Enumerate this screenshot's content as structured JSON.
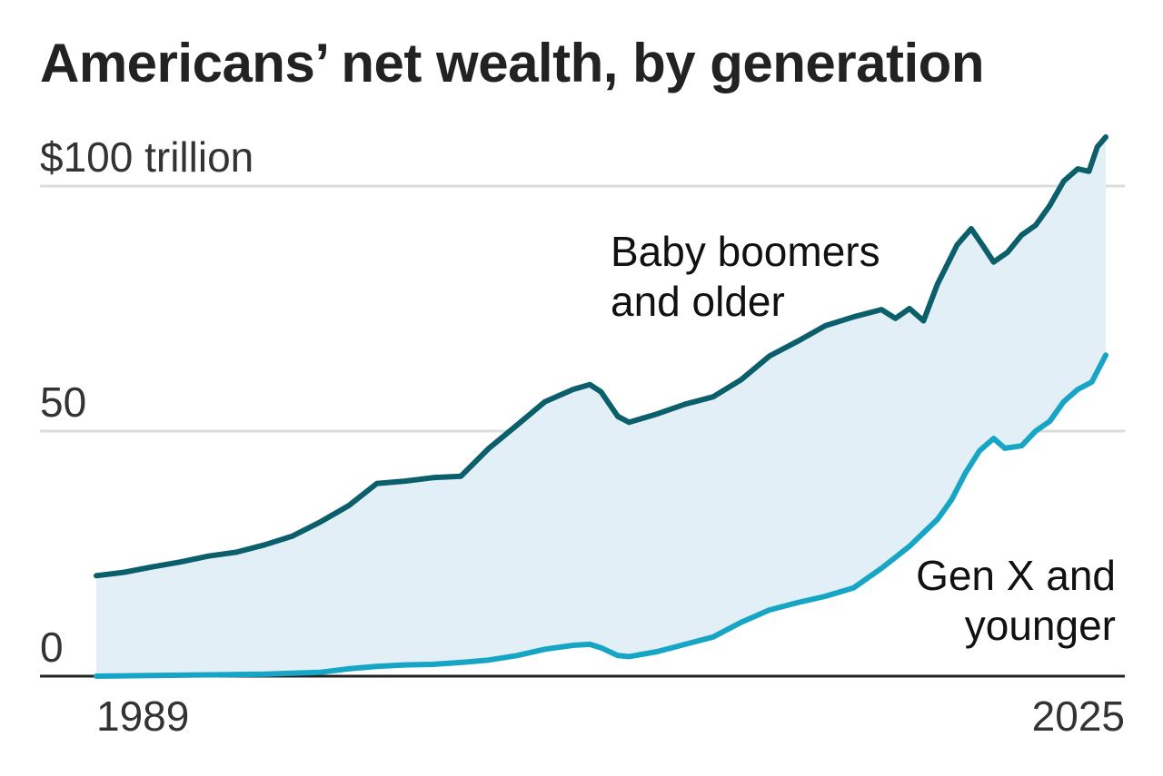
{
  "chart_data": {
    "type": "area",
    "title": "Americans’ net wealth, by generation",
    "xlabel": "",
    "ylabel": "",
    "unit": "trillion",
    "xlim": [
      1989,
      2025
    ],
    "ylim": [
      0,
      100
    ],
    "y_ticks": [
      {
        "value": 0,
        "label": "0"
      },
      {
        "value": 50,
        "label": "50"
      },
      {
        "value": 100,
        "label": "$100 trillion"
      }
    ],
    "x_ticks": [
      {
        "value": 1989,
        "label": "1989"
      },
      {
        "value": 2025,
        "label": "2025"
      }
    ],
    "grid": true,
    "fill_between_series": true,
    "colors": {
      "boomers": "#0b5f6b",
      "genx": "#16a5c4",
      "fill": "#e3eff7",
      "grid": "#dcdcdc",
      "axis": "#222222"
    },
    "series": [
      {
        "name": "Baby boomers and older",
        "label_lines": [
          "Baby boomers",
          "and older"
        ],
        "points": [
          [
            1989.0,
            20.5
          ],
          [
            1990.0,
            21.2
          ],
          [
            1991.0,
            22.3
          ],
          [
            1992.0,
            23.3
          ],
          [
            1993.0,
            24.5
          ],
          [
            1994.0,
            25.3
          ],
          [
            1995.0,
            26.8
          ],
          [
            1996.0,
            28.6
          ],
          [
            1997.0,
            31.5
          ],
          [
            1998.0,
            34.8
          ],
          [
            1999.0,
            39.3
          ],
          [
            2000.0,
            39.8
          ],
          [
            2001.0,
            40.5
          ],
          [
            2002.0,
            40.8
          ],
          [
            2003.0,
            46.5
          ],
          [
            2004.0,
            51.2
          ],
          [
            2005.0,
            56.0
          ],
          [
            2006.0,
            58.5
          ],
          [
            2006.6,
            59.5
          ],
          [
            2007.0,
            58.0
          ],
          [
            2007.6,
            53.0
          ],
          [
            2008.0,
            51.8
          ],
          [
            2009.0,
            53.5
          ],
          [
            2010.0,
            55.5
          ],
          [
            2011.0,
            57.0
          ],
          [
            2012.0,
            60.5
          ],
          [
            2013.0,
            65.3
          ],
          [
            2014.0,
            68.3
          ],
          [
            2015.0,
            71.5
          ],
          [
            2016.0,
            73.3
          ],
          [
            2017.0,
            74.8
          ],
          [
            2017.5,
            73.0
          ],
          [
            2018.0,
            75.0
          ],
          [
            2018.5,
            72.5
          ],
          [
            2019.0,
            80.0
          ],
          [
            2019.7,
            88.0
          ],
          [
            2020.2,
            91.3
          ],
          [
            2020.6,
            88.0
          ],
          [
            2021.0,
            84.5
          ],
          [
            2021.5,
            86.5
          ],
          [
            2022.0,
            90.0
          ],
          [
            2022.5,
            92.0
          ],
          [
            2023.0,
            96.0
          ],
          [
            2023.5,
            101.0
          ],
          [
            2024.0,
            103.5
          ],
          [
            2024.4,
            103.0
          ],
          [
            2024.7,
            108.0
          ],
          [
            2025.0,
            110.0
          ]
        ]
      },
      {
        "name": "Gen X and younger",
        "label_lines": [
          "Gen X and",
          "younger"
        ],
        "points": [
          [
            1989.0,
            0.0
          ],
          [
            1992.0,
            0.2
          ],
          [
            1995.0,
            0.4
          ],
          [
            1997.0,
            0.8
          ],
          [
            1998.0,
            1.5
          ],
          [
            1999.0,
            2.0
          ],
          [
            2000.0,
            2.3
          ],
          [
            2001.0,
            2.4
          ],
          [
            2002.0,
            2.8
          ],
          [
            2003.0,
            3.3
          ],
          [
            2004.0,
            4.2
          ],
          [
            2005.0,
            5.5
          ],
          [
            2006.0,
            6.3
          ],
          [
            2006.6,
            6.5
          ],
          [
            2007.0,
            5.8
          ],
          [
            2007.6,
            4.2
          ],
          [
            2008.0,
            4.0
          ],
          [
            2009.0,
            5.0
          ],
          [
            2010.0,
            6.5
          ],
          [
            2011.0,
            8.0
          ],
          [
            2012.0,
            11.0
          ],
          [
            2013.0,
            13.5
          ],
          [
            2014.0,
            15.0
          ],
          [
            2015.0,
            16.3
          ],
          [
            2016.0,
            18.0
          ],
          [
            2017.0,
            22.0
          ],
          [
            2018.0,
            26.5
          ],
          [
            2019.0,
            32.0
          ],
          [
            2019.5,
            36.0
          ],
          [
            2020.0,
            41.5
          ],
          [
            2020.5,
            46.0
          ],
          [
            2021.0,
            48.5
          ],
          [
            2021.4,
            46.5
          ],
          [
            2022.0,
            47.0
          ],
          [
            2022.5,
            50.0
          ],
          [
            2023.0,
            52.0
          ],
          [
            2023.5,
            56.0
          ],
          [
            2024.0,
            58.5
          ],
          [
            2024.5,
            60.0
          ],
          [
            2025.0,
            65.5
          ]
        ]
      }
    ]
  }
}
